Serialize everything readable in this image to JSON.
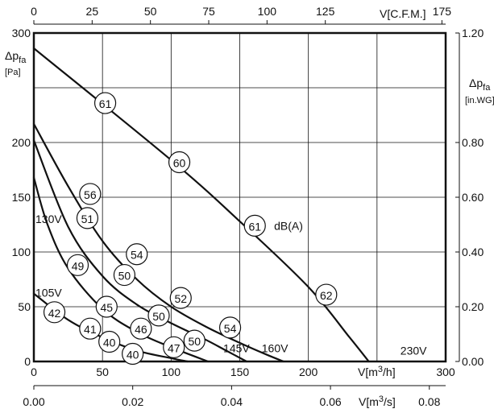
{
  "chart_data": {
    "type": "line",
    "title": "",
    "axes": {
      "x_bottom": {
        "label_prefix": "V[m",
        "label_sup": "3",
        "label_suffix": "/h]",
        "range": [
          0,
          300
        ],
        "ticks": [
          "0",
          "50",
          "100",
          "150",
          "200",
          "300"
        ],
        "tick_values": [
          0,
          50,
          100,
          150,
          200,
          300
        ]
      },
      "x_secondary_bottom": {
        "label_prefix": "V[m",
        "label_sup": "3",
        "label_suffix": "/s]",
        "range": [
          0,
          0.0833
        ],
        "ticks": [
          "0.00",
          "0.02",
          "0.04",
          "0.06",
          "0.08"
        ],
        "tick_values": [
          0,
          0.02,
          0.04,
          0.06,
          0.08
        ]
      },
      "x_top": {
        "label": "V[C.F.M.]",
        "range": [
          0,
          176.6
        ],
        "ticks": [
          "0",
          "25",
          "50",
          "75",
          "100",
          "125",
          "175"
        ],
        "tick_values": [
          0,
          25,
          50,
          75,
          100,
          125,
          175
        ]
      },
      "y_left": {
        "label_main": "Δp",
        "label_sub": "fa",
        "label_unit": "[Pa]",
        "range": [
          0,
          300
        ],
        "ticks": [
          "0",
          "50",
          "100",
          "150",
          "200",
          "300"
        ],
        "tick_values": [
          0,
          50,
          100,
          150,
          200,
          300
        ]
      },
      "y_right": {
        "label_main": "Δp",
        "label_sub": "fa",
        "label_unit": "[in.WG]",
        "range": [
          0,
          1.2
        ],
        "ticks": [
          "0.00",
          "0.20",
          "0.40",
          "0.60",
          "0.80",
          "1.20"
        ],
        "tick_values": [
          0,
          0.2,
          0.4,
          0.6,
          0.8,
          1.2
        ]
      }
    },
    "grid": true,
    "series": [
      {
        "name": "230V",
        "x": [
          0,
          100,
          150,
          200,
          230,
          244
        ],
        "y": [
          286,
          184,
          128,
          68,
          22,
          0
        ],
        "label_at": [
          267,
          10
        ]
      },
      {
        "name": "160V",
        "x": [
          0,
          25,
          50,
          75,
          100,
          125,
          150,
          170,
          182
        ],
        "y": [
          217,
          160,
          110,
          75,
          50,
          32,
          17,
          6,
          0
        ],
        "label_at": [
          166,
          12
        ]
      },
      {
        "name": "145V",
        "x": [
          0,
          25,
          50,
          75,
          100,
          125,
          140,
          155
        ],
        "y": [
          202,
          123,
          78,
          52,
          35,
          20,
          10,
          0
        ],
        "label_at": [
          138,
          12
        ]
      },
      {
        "name": "130V",
        "x": [
          0,
          10,
          25,
          50,
          75,
          100,
          127
        ],
        "y": [
          168,
          125,
          85,
          48,
          27,
          13,
          0
        ],
        "label_at": [
          -20,
          130
        ]
      },
      {
        "name": "105V",
        "x": [
          0,
          25,
          50,
          75,
          100,
          112
        ],
        "y": [
          62,
          38,
          22,
          10,
          3,
          0
        ],
        "label_at": [
          -20,
          63
        ]
      }
    ],
    "annotations": [
      {
        "text": "61",
        "x": 52,
        "y": 236
      },
      {
        "text": "60",
        "x": 106,
        "y": 182
      },
      {
        "text": "61",
        "x": 161,
        "y": 124
      },
      {
        "text": "dB(A)",
        "x": 175,
        "y": 124
      },
      {
        "text": "62",
        "x": 213,
        "y": 61
      },
      {
        "text": "56",
        "x": 41,
        "y": 153
      },
      {
        "text": "51",
        "x": 39,
        "y": 131
      },
      {
        "text": "54",
        "x": 75,
        "y": 98
      },
      {
        "text": "50",
        "x": 66,
        "y": 79
      },
      {
        "text": "52",
        "x": 107,
        "y": 58
      },
      {
        "text": "49",
        "x": 32,
        "y": 88
      },
      {
        "text": "45",
        "x": 53,
        "y": 50
      },
      {
        "text": "50",
        "x": 91,
        "y": 42
      },
      {
        "text": "54",
        "x": 143,
        "y": 31
      },
      {
        "text": "42",
        "x": 15,
        "y": 45
      },
      {
        "text": "41",
        "x": 41,
        "y": 30
      },
      {
        "text": "46",
        "x": 78,
        "y": 30
      },
      {
        "text": "50",
        "x": 117,
        "y": 19
      },
      {
        "text": "40",
        "x": 55,
        "y": 18
      },
      {
        "text": "47",
        "x": 102,
        "y": 13
      },
      {
        "text": "40",
        "x": 72,
        "y": 7
      }
    ],
    "legend": "none"
  }
}
